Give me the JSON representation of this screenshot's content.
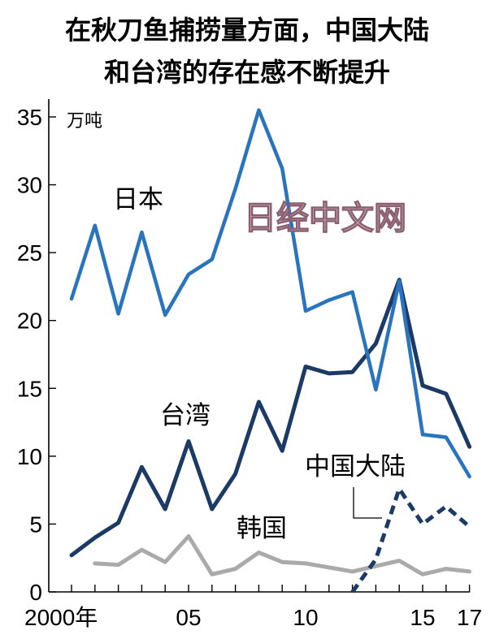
{
  "title_lines": [
    "在秋刀鱼捕捞量方面，中国大陆",
    "和台湾的存在感不断提升"
  ],
  "watermark": "日经中文网",
  "colors": {
    "japan": "#2a74bd",
    "taiwan": "#1b3a66",
    "china": "#1b3a66",
    "korea": "#aaaaaa",
    "watermark": "#e0c6cf"
  },
  "chart_data": {
    "type": "line",
    "ylabel": "万吨",
    "ylim": [
      0,
      35
    ],
    "xlim": [
      2000,
      2017
    ],
    "yticks": [
      "0",
      "5",
      "10",
      "15",
      "20",
      "25",
      "30",
      "35"
    ],
    "xticks": [
      {
        "year": 2000,
        "label": "2000年"
      },
      {
        "year": 2005,
        "label": "05"
      },
      {
        "year": 2010,
        "label": "10"
      },
      {
        "year": 2015,
        "label": "15"
      },
      {
        "year": 2017,
        "label": "17"
      }
    ],
    "series": [
      {
        "name": "日本",
        "style": "solid",
        "x": [
          2000,
          2001,
          2002,
          2003,
          2004,
          2005,
          2006,
          2007,
          2008,
          2009,
          2010,
          2011,
          2012,
          2013,
          2014,
          2015,
          2016,
          2017
        ],
        "values": [
          21.6,
          27.0,
          20.5,
          26.5,
          20.4,
          23.4,
          24.5,
          29.7,
          35.5,
          31.2,
          20.7,
          21.5,
          22.1,
          14.9,
          22.9,
          11.6,
          11.4,
          8.5
        ]
      },
      {
        "name": "台湾",
        "style": "solid",
        "x": [
          2000,
          2001,
          2002,
          2003,
          2004,
          2005,
          2006,
          2007,
          2008,
          2009,
          2010,
          2011,
          2012,
          2013,
          2014,
          2015,
          2016,
          2017
        ],
        "values": [
          2.7,
          4.0,
          5.1,
          9.2,
          6.1,
          11.1,
          6.1,
          8.7,
          14.0,
          10.4,
          16.6,
          16.1,
          16.2,
          18.3,
          23.0,
          15.2,
          14.6,
          10.7
        ]
      },
      {
        "name": "中国大陆",
        "style": "dashed",
        "x": [
          2012,
          2013,
          2014,
          2015,
          2016,
          2017
        ],
        "values": [
          0.0,
          2.4,
          7.6,
          5.0,
          6.3,
          4.8
        ]
      },
      {
        "name": "韩国",
        "style": "solid",
        "x": [
          2001,
          2002,
          2003,
          2004,
          2005,
          2006,
          2007,
          2008,
          2009,
          2010,
          2011,
          2012,
          2013,
          2014,
          2015,
          2016,
          2017
        ],
        "values": [
          2.1,
          2.0,
          3.1,
          2.2,
          4.1,
          1.3,
          1.7,
          2.9,
          2.2,
          2.1,
          1.8,
          1.5,
          1.9,
          2.3,
          1.3,
          1.7,
          1.5
        ]
      }
    ]
  }
}
